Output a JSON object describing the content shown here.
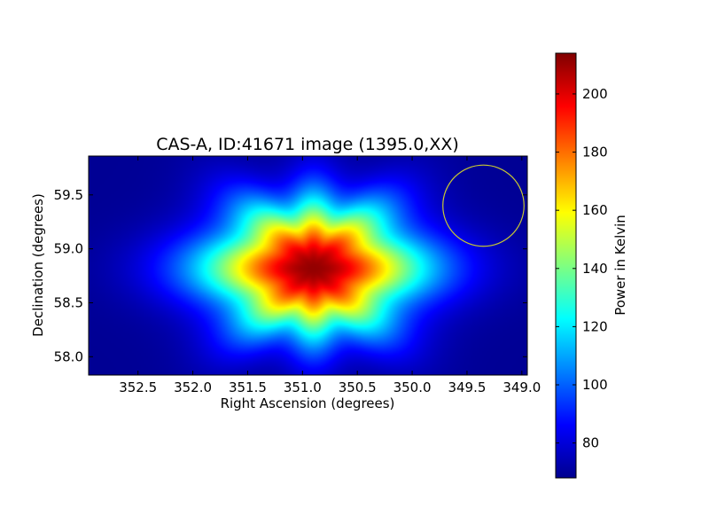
{
  "chart_data": [
    {
      "type": "heatmap",
      "title": "CAS-A, ID:41671 image (1395.0,XX)",
      "xlabel": "Right Ascension (degrees)",
      "ylabel": "Declination (degrees)",
      "xlim": [
        352.95,
        348.95
      ],
      "ylim": [
        57.83,
        59.86
      ],
      "xticks": [
        352.5,
        352.0,
        351.5,
        351.0,
        350.5,
        350.0,
        349.5,
        349.0
      ],
      "xtick_labels": [
        "352.5",
        "352.0",
        "351.5",
        "351.0",
        "350.5",
        "350.0",
        "349.5",
        "349.0"
      ],
      "yticks": [
        58.0,
        58.5,
        59.0,
        59.5
      ],
      "ytick_labels": [
        "58.0",
        "58.5",
        "59.0",
        "59.5"
      ],
      "colormap": "jet",
      "grid": false,
      "source": {
        "ra_deg": 350.9,
        "dec_deg": 58.82,
        "peak_kelvin": 214,
        "background_kelvin": 68
      },
      "marker_circle": {
        "ra_deg": 349.35,
        "dec_deg": 59.4,
        "radius_deg": 0.37,
        "color": "#c8c832"
      },
      "colorbar": {
        "label": "Power in Kelvin",
        "min": 68,
        "max": 214,
        "ticks": [
          80,
          100,
          120,
          140,
          160,
          180,
          200
        ],
        "tick_labels": [
          "80",
          "100",
          "120",
          "140",
          "160",
          "180",
          "200"
        ]
      }
    }
  ]
}
